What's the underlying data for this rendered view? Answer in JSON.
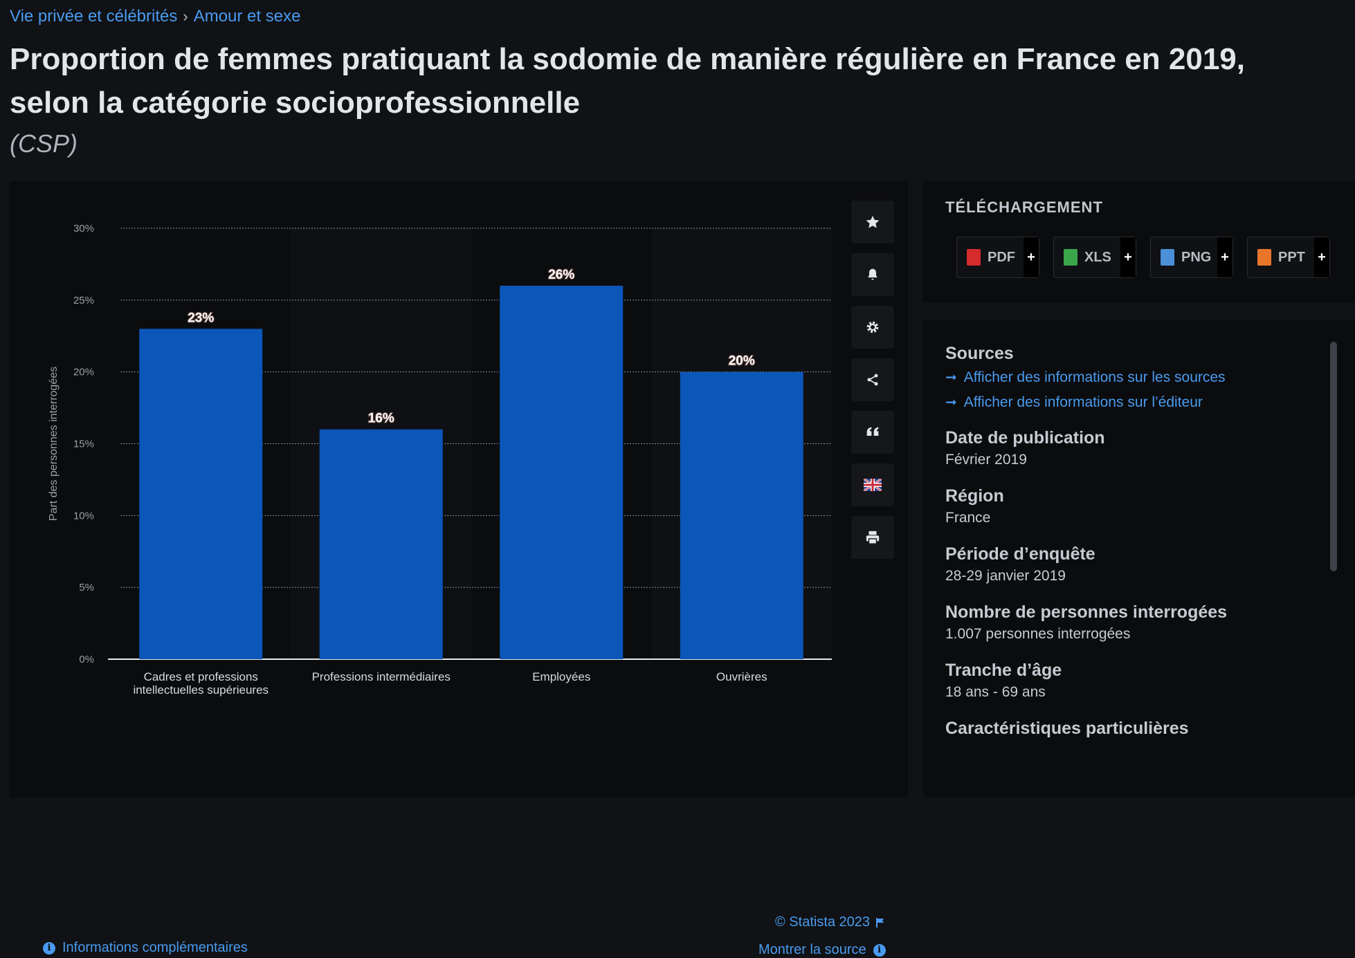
{
  "breadcrumb": {
    "items": [
      "Vie privée et célébrités",
      "Amour et sexe"
    ],
    "separator": "›"
  },
  "title": "Proportion de femmes pratiquant la sodomie de manière régulière en France en 2019, selon la catégorie socioprofessionnelle",
  "subtitle": "(CSP)",
  "chart_data": {
    "type": "bar",
    "categories": [
      "Cadres et professions intellectuelles supérieures",
      "Professions intermédiaires",
      "Employées",
      "Ouvrières"
    ],
    "category_lines": [
      [
        "Cadres et professions",
        "intellectuelles supérieures"
      ],
      [
        "Professions intermédiaires"
      ],
      [
        "Employées"
      ],
      [
        "Ouvrières"
      ]
    ],
    "values": [
      23,
      16,
      26,
      20
    ],
    "data_labels": [
      "23%",
      "16%",
      "26%",
      "20%"
    ],
    "ylabel": "Part des personnes interrogées",
    "xlabel": "",
    "ylim": [
      0,
      30
    ],
    "yticks": [
      0,
      5,
      10,
      15,
      20,
      25,
      30
    ],
    "ytick_labels": [
      "0%",
      "5%",
      "10%",
      "15%",
      "20%",
      "25%",
      "30%"
    ],
    "grid": true,
    "bar_color": "#0b56b8"
  },
  "toolbar": {
    "icons": [
      "star-icon",
      "bell-icon",
      "gear-icon",
      "share-icon",
      "quote-icon",
      "flag-icon",
      "print-icon"
    ]
  },
  "credit": "© Statista 2023",
  "show_source": "Montrer la source",
  "more_info": "Informations complémentaires",
  "download": {
    "title": "TÉLÉCHARGEMENT",
    "buttons": [
      {
        "label": "PDF",
        "color": "#d62b2b"
      },
      {
        "label": "XLS",
        "color": "#3aa64a"
      },
      {
        "label": "PNG",
        "color": "#4a8fd8"
      },
      {
        "label": "PPT",
        "color": "#e8752a"
      }
    ],
    "plus": "+"
  },
  "info": {
    "sources_title": "Sources",
    "source_link_1": "Afficher des informations sur les sources",
    "source_link_2": "Afficher des informations sur l’éditeur",
    "pub_date_title": "Date de publication",
    "pub_date": "Février 2019",
    "region_title": "Région",
    "region": "France",
    "period_title": "Période d’enquête",
    "period": "28-29 janvier 2019",
    "respondents_title": "Nombre de personnes interrogées",
    "respondents": "1.007 personnes interrogées",
    "age_title": "Tranche d’âge",
    "age": "18 ans - 69 ans",
    "special_title": "Caractéristiques particulières"
  },
  "colors": {
    "link": "#4a9bf0",
    "bar": "#0b56b8",
    "background": "#101215"
  }
}
